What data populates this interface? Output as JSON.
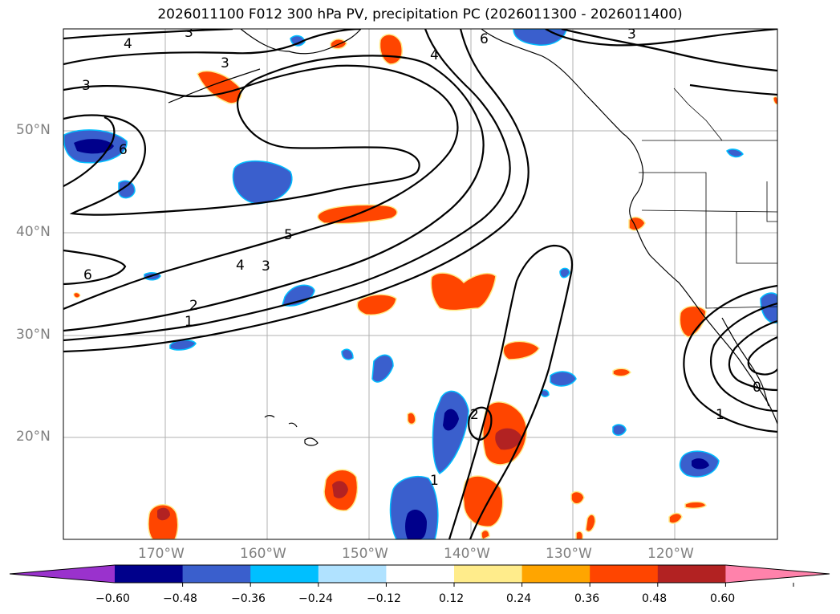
{
  "title": "2026011100 F012 300 hPa PV, precipitation PC (2026011300 - 2026011400)",
  "lat_labels": [
    "50°N",
    "40°N",
    "30°N",
    "20°N"
  ],
  "lon_labels": [
    "170°W",
    "160°W",
    "150°W",
    "140°W",
    "130°W",
    "120°W"
  ],
  "contour_labels": [
    "4",
    "3",
    "3",
    "3",
    "6",
    "4",
    "6",
    "3",
    "6",
    "5",
    "4",
    "3",
    "2",
    "1",
    "2",
    "1",
    "0",
    "1"
  ],
  "colorbar": {
    "ticks": [
      "−0.60",
      "−0.48",
      "−0.36",
      "−0.24",
      "−0.12",
      "0.12",
      "0.24",
      "0.36",
      "0.48",
      "0.60"
    ],
    "colors": [
      "#9a32cd",
      "#00008b",
      "#3a5fcd",
      "#00bfff",
      "#b0e2ff",
      "#ffffff",
      "#ffec8b",
      "#ffa500",
      "#ff4500",
      "#b22222",
      "#ff82ab"
    ]
  }
}
